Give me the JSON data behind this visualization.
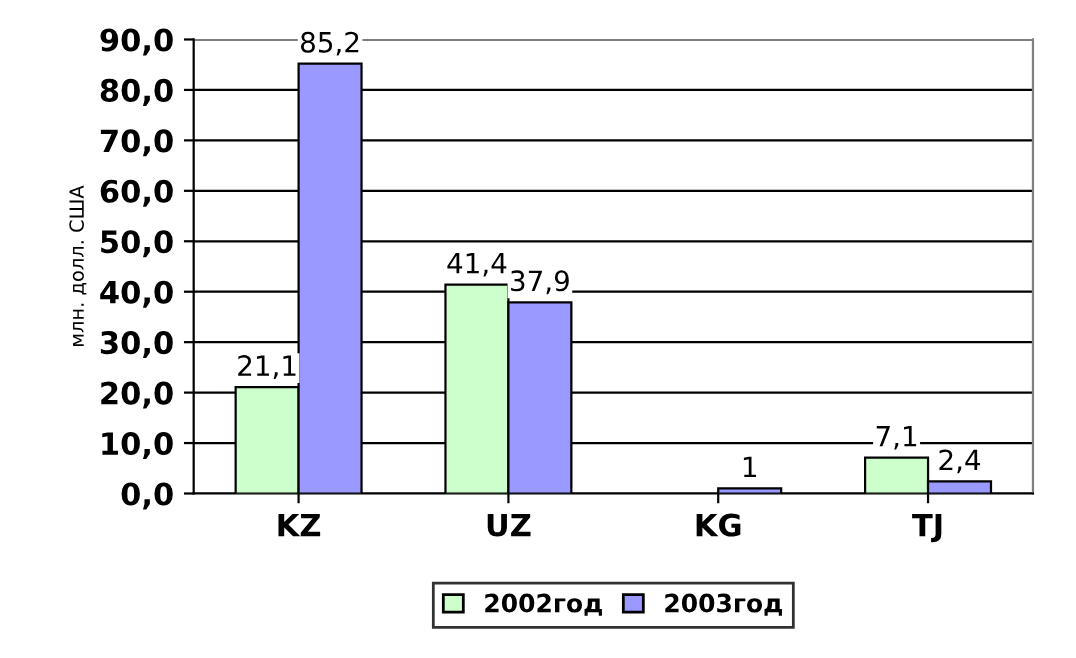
{
  "chart_data": {
    "type": "bar",
    "ylabel": "млн. долл. США",
    "categories": [
      "KZ",
      "UZ",
      "KG",
      "TJ"
    ],
    "series": [
      {
        "name": "2002год",
        "color": "#ccffcc",
        "values": [
          21.1,
          41.4,
          null,
          7.1
        ],
        "value_labels": [
          "21,1",
          "41,4",
          null,
          "7,1"
        ]
      },
      {
        "name": "2003год",
        "color": "#9999ff",
        "values": [
          85.2,
          37.9,
          1,
          2.4
        ],
        "value_labels": [
          "85,2",
          "37,9",
          "1",
          "2,4"
        ]
      }
    ],
    "ylim": [
      0,
      90
    ],
    "yticks": [
      {
        "value": 0,
        "label": "0,0"
      },
      {
        "value": 10,
        "label": "10,0"
      },
      {
        "value": 20,
        "label": "20,0"
      },
      {
        "value": 30,
        "label": "30,0"
      },
      {
        "value": 40,
        "label": "40,0"
      },
      {
        "value": 50,
        "label": "50,0"
      },
      {
        "value": 60,
        "label": "60,0"
      },
      {
        "value": 70,
        "label": "70,0"
      },
      {
        "value": 80,
        "label": "80,0"
      },
      {
        "value": 90,
        "label": "90,0"
      }
    ],
    "grid": "y",
    "legend": "bottom"
  }
}
